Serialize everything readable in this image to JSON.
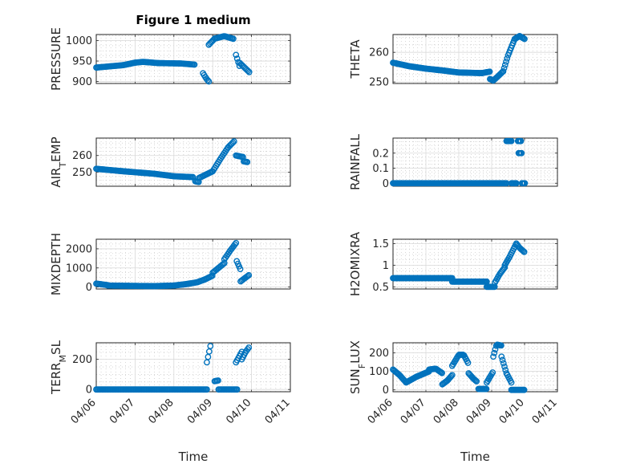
{
  "chart_data": {
    "title": "Figure 1 medium",
    "color": "#0072BD",
    "x_ticks": [
      "04/06",
      "04/07",
      "04/08",
      "04/09",
      "04/10",
      "04/11"
    ],
    "x_label": "Time",
    "panels": [
      {
        "type": "scatter",
        "ylabel": "PRESSURE",
        "ylim": [
          895,
          1015
        ],
        "yticks": [
          900,
          950,
          1000
        ],
        "segments": [
          {
            "x0": 0.0,
            "x1": 0.35,
            "points": [
              [
                0.0,
                934
              ],
              [
                0.35,
                937
              ]
            ]
          },
          {
            "x0": 0.35,
            "x1": 1.0,
            "points": [
              [
                0.35,
                937
              ],
              [
                0.7,
                940
              ],
              [
                1.0,
                946
              ]
            ]
          },
          {
            "x0": 1.0,
            "x1": 2.55,
            "points": [
              [
                1.0,
                946
              ],
              [
                1.2,
                948
              ],
              [
                1.6,
                945
              ],
              [
                2.2,
                944
              ],
              [
                2.55,
                941
              ]
            ]
          },
          {
            "x0": 2.75,
            "x1": 2.9,
            "points": [
              [
                2.75,
                920
              ],
              [
                2.85,
                905
              ],
              [
                2.9,
                900
              ]
            ]
          },
          {
            "x0": 2.9,
            "x1": 3.05,
            "points": [
              [
                2.9,
                990
              ],
              [
                3.05,
                1005
              ]
            ]
          },
          {
            "x0": 3.05,
            "x1": 3.55,
            "points": [
              [
                3.05,
                1005
              ],
              [
                3.3,
                1011
              ],
              [
                3.55,
                1004
              ]
            ]
          },
          {
            "x0": 3.6,
            "x1": 3.7,
            "points": [
              [
                3.6,
                965
              ],
              [
                3.7,
                935
              ]
            ]
          },
          {
            "x0": 3.7,
            "x1": 3.95,
            "points": [
              [
                3.7,
                945
              ],
              [
                3.95,
                922
              ]
            ]
          }
        ]
      },
      {
        "type": "scatter",
        "ylabel": "THETA",
        "ylim": [
          249.5,
          266
        ],
        "yticks": [
          250,
          260
        ],
        "segments": [
          {
            "x0": 0.0,
            "x1": 2.7,
            "points": [
              [
                0.0,
                256.5
              ],
              [
                0.5,
                255.3
              ],
              [
                1.0,
                254.5
              ],
              [
                1.5,
                253.9
              ],
              [
                2.0,
                253.2
              ],
              [
                2.7,
                253.0
              ]
            ]
          },
          {
            "x0": 2.7,
            "x1": 2.95,
            "points": [
              [
                2.7,
                253.0
              ],
              [
                2.95,
                253.5
              ]
            ]
          },
          {
            "x0": 2.95,
            "x1": 3.05,
            "points": [
              [
                2.95,
                251
              ],
              [
                3.05,
                250.5
              ]
            ]
          },
          {
            "x0": 3.05,
            "x1": 3.35,
            "points": [
              [
                3.05,
                250.5
              ],
              [
                3.2,
                252
              ],
              [
                3.35,
                253.6
              ]
            ]
          },
          {
            "x0": 3.35,
            "x1": 3.7,
            "points": [
              [
                3.35,
                253.6
              ],
              [
                3.5,
                259
              ],
              [
                3.7,
                264.5
              ]
            ]
          },
          {
            "x0": 3.7,
            "x1": 4.0,
            "points": [
              [
                3.7,
                264.5
              ],
              [
                3.85,
                265.5
              ],
              [
                4.0,
                264.5
              ]
            ]
          }
        ]
      },
      {
        "type": "scatter",
        "ylabel": "AIR_TEMP",
        "ylim": [
          241.5,
          270.5
        ],
        "yticks": [
          250,
          260
        ],
        "segments": [
          {
            "x0": 0.0,
            "x1": 2.5,
            "points": [
              [
                0.0,
                252
              ],
              [
                0.7,
                250.5
              ],
              [
                1.5,
                249
              ],
              [
                2.0,
                247.5
              ],
              [
                2.5,
                247
              ]
            ]
          },
          {
            "x0": 2.55,
            "x1": 2.65,
            "points": [
              [
                2.55,
                244.5
              ],
              [
                2.65,
                244
              ]
            ]
          },
          {
            "x0": 2.65,
            "x1": 3.0,
            "points": [
              [
                2.65,
                246.5
              ],
              [
                3.0,
                250.5
              ]
            ]
          },
          {
            "x0": 3.0,
            "x1": 3.4,
            "points": [
              [
                3.0,
                250.5
              ],
              [
                3.2,
                258
              ],
              [
                3.4,
                265
              ]
            ]
          },
          {
            "x0": 3.4,
            "x1": 3.55,
            "points": [
              [
                3.4,
                265
              ],
              [
                3.55,
                268.5
              ]
            ]
          },
          {
            "x0": 3.6,
            "x1": 3.8,
            "points": [
              [
                3.6,
                260
              ],
              [
                3.8,
                259
              ]
            ]
          },
          {
            "x0": 3.8,
            "x1": 3.9,
            "points": [
              [
                3.8,
                256.5
              ],
              [
                3.9,
                256
              ]
            ]
          }
        ]
      },
      {
        "type": "scatter",
        "ylabel": "RAINFALL",
        "ylim": [
          -0.02,
          0.3
        ],
        "yticks": [
          0,
          0.1,
          0.2
        ],
        "segments": [
          {
            "x0": 0.0,
            "x1": 3.45,
            "points": [
              [
                0.0,
                0
              ],
              [
                3.45,
                0
              ]
            ]
          },
          {
            "x0": 3.45,
            "x1": 3.6,
            "points": [
              [
                3.45,
                0.28
              ],
              [
                3.6,
                0.28
              ]
            ]
          },
          {
            "x0": 3.6,
            "x1": 3.75,
            "points": [
              [
                3.6,
                0
              ],
              [
                3.75,
                0
              ]
            ]
          },
          {
            "x0": 3.8,
            "x1": 3.9,
            "points": [
              [
                3.8,
                0.28
              ],
              [
                3.9,
                0.28
              ]
            ]
          },
          {
            "x0": 3.82,
            "x1": 3.92,
            "points": [
              [
                3.82,
                0.2
              ],
              [
                3.92,
                0.2
              ]
            ]
          },
          {
            "x0": 3.92,
            "x1": 4.02,
            "points": [
              [
                3.92,
                0
              ],
              [
                4.02,
                0
              ]
            ]
          }
        ]
      },
      {
        "type": "scatter",
        "ylabel": "MIXDEPTH",
        "ylim": [
          -100,
          2500
        ],
        "yticks": [
          0,
          1000,
          2000
        ],
        "segments": [
          {
            "x0": 0.0,
            "x1": 0.3,
            "points": [
              [
                0.0,
                180
              ],
              [
                0.3,
                100
              ]
            ]
          },
          {
            "x0": 0.3,
            "x1": 2.0,
            "points": [
              [
                0.3,
                80
              ],
              [
                1.0,
                60
              ],
              [
                1.5,
                50
              ],
              [
                2.0,
                80
              ]
            ]
          },
          {
            "x0": 2.0,
            "x1": 2.6,
            "points": [
              [
                2.0,
                80
              ],
              [
                2.3,
                150
              ],
              [
                2.6,
                250
              ]
            ]
          },
          {
            "x0": 2.6,
            "x1": 3.0,
            "points": [
              [
                2.6,
                250
              ],
              [
                2.8,
                400
              ],
              [
                3.0,
                600
              ]
            ]
          },
          {
            "x0": 3.0,
            "x1": 3.3,
            "points": [
              [
                3.0,
                750
              ],
              [
                3.15,
                1000
              ],
              [
                3.3,
                1250
              ]
            ]
          },
          {
            "x0": 3.3,
            "x1": 3.6,
            "points": [
              [
                3.3,
                1450
              ],
              [
                3.45,
                1900
              ],
              [
                3.6,
                2300
              ]
            ]
          },
          {
            "x0": 3.62,
            "x1": 3.72,
            "points": [
              [
                3.62,
                1350
              ],
              [
                3.72,
                900
              ]
            ]
          },
          {
            "x0": 3.72,
            "x1": 3.95,
            "points": [
              [
                3.72,
                300
              ],
              [
                3.85,
                500
              ],
              [
                3.95,
                650
              ]
            ]
          }
        ]
      },
      {
        "type": "scatter",
        "ylabel": "H2OMIXRA",
        "ylim": [
          0.45,
          1.6
        ],
        "yticks": [
          0.5,
          1,
          1.5
        ],
        "segments": [
          {
            "x0": 0.0,
            "x1": 1.8,
            "points": [
              [
                0.0,
                0.7
              ],
              [
                1.8,
                0.7
              ]
            ]
          },
          {
            "x0": 1.8,
            "x1": 2.85,
            "points": [
              [
                1.8,
                0.62
              ],
              [
                2.85,
                0.62
              ]
            ]
          },
          {
            "x0": 2.85,
            "x1": 3.1,
            "points": [
              [
                2.85,
                0.5
              ],
              [
                3.1,
                0.5
              ]
            ]
          },
          {
            "x0": 3.1,
            "x1": 3.4,
            "points": [
              [
                3.1,
                0.6
              ],
              [
                3.25,
                0.8
              ],
              [
                3.4,
                0.95
              ]
            ]
          },
          {
            "x0": 3.4,
            "x1": 3.75,
            "points": [
              [
                3.4,
                1.0
              ],
              [
                3.55,
                1.2
              ],
              [
                3.75,
                1.5
              ]
            ]
          },
          {
            "x0": 3.75,
            "x1": 4.0,
            "points": [
              [
                3.75,
                1.5
              ],
              [
                3.85,
                1.4
              ],
              [
                4.0,
                1.3
              ]
            ]
          }
        ]
      },
      {
        "type": "scatter",
        "ylabel": "TERR_MSL",
        "ylim": [
          -15,
          310
        ],
        "yticks": [
          0,
          200
        ],
        "segments": [
          {
            "x0": 0.0,
            "x1": 2.85,
            "points": [
              [
                0.0,
                0
              ],
              [
                2.85,
                0
              ]
            ]
          },
          {
            "x0": 2.85,
            "x1": 2.95,
            "points": [
              [
                2.85,
                180
              ],
              [
                2.95,
                300
              ]
            ]
          },
          {
            "x0": 3.05,
            "x1": 3.15,
            "points": [
              [
                3.05,
                55
              ],
              [
                3.15,
                60
              ]
            ]
          },
          {
            "x0": 3.15,
            "x1": 3.65,
            "points": [
              [
                3.15,
                0
              ],
              [
                3.65,
                0
              ]
            ]
          },
          {
            "x0": 3.6,
            "x1": 3.75,
            "points": [
              [
                3.6,
                180
              ],
              [
                3.75,
                250
              ]
            ]
          },
          {
            "x0": 3.75,
            "x1": 3.95,
            "points": [
              [
                3.75,
                200
              ],
              [
                3.85,
                250
              ],
              [
                3.95,
                285
              ]
            ]
          }
        ]
      },
      {
        "type": "scatter",
        "ylabel": "SUN_FLUX",
        "ylim": [
          -10,
          255
        ],
        "yticks": [
          0,
          100,
          200
        ],
        "segments": [
          {
            "x0": 0.0,
            "x1": 0.4,
            "points": [
              [
                0.0,
                110
              ],
              [
                0.2,
                80
              ],
              [
                0.4,
                40
              ]
            ]
          },
          {
            "x0": 0.4,
            "x1": 1.1,
            "points": [
              [
                0.4,
                40
              ],
              [
                0.7,
                70
              ],
              [
                1.1,
                100
              ]
            ]
          },
          {
            "x0": 1.1,
            "x1": 1.5,
            "points": [
              [
                1.1,
                110
              ],
              [
                1.3,
                115
              ],
              [
                1.5,
                90
              ]
            ]
          },
          {
            "x0": 1.5,
            "x1": 1.8,
            "points": [
              [
                1.5,
                30
              ],
              [
                1.65,
                50
              ],
              [
                1.8,
                80
              ]
            ]
          },
          {
            "x0": 1.8,
            "x1": 2.3,
            "points": [
              [
                1.8,
                130
              ],
              [
                2.0,
                190
              ],
              [
                2.15,
                190
              ],
              [
                2.3,
                140
              ]
            ]
          },
          {
            "x0": 2.3,
            "x1": 2.55,
            "points": [
              [
                2.3,
                90
              ],
              [
                2.45,
                60
              ],
              [
                2.55,
                45
              ]
            ]
          },
          {
            "x0": 2.6,
            "x1": 2.85,
            "points": [
              [
                2.6,
                5
              ],
              [
                2.85,
                5
              ]
            ]
          },
          {
            "x0": 2.85,
            "x1": 3.05,
            "points": [
              [
                2.85,
                40
              ],
              [
                3.05,
                100
              ]
            ]
          },
          {
            "x0": 3.05,
            "x1": 3.3,
            "points": [
              [
                3.05,
                180
              ],
              [
                3.15,
                245
              ],
              [
                3.3,
                240
              ]
            ]
          },
          {
            "x0": 3.3,
            "x1": 3.6,
            "points": [
              [
                3.3,
                180
              ],
              [
                3.45,
                90
              ],
              [
                3.6,
                40
              ]
            ]
          },
          {
            "x0": 3.6,
            "x1": 4.0,
            "points": [
              [
                3.6,
                0
              ],
              [
                4.0,
                0
              ]
            ]
          }
        ]
      }
    ]
  }
}
